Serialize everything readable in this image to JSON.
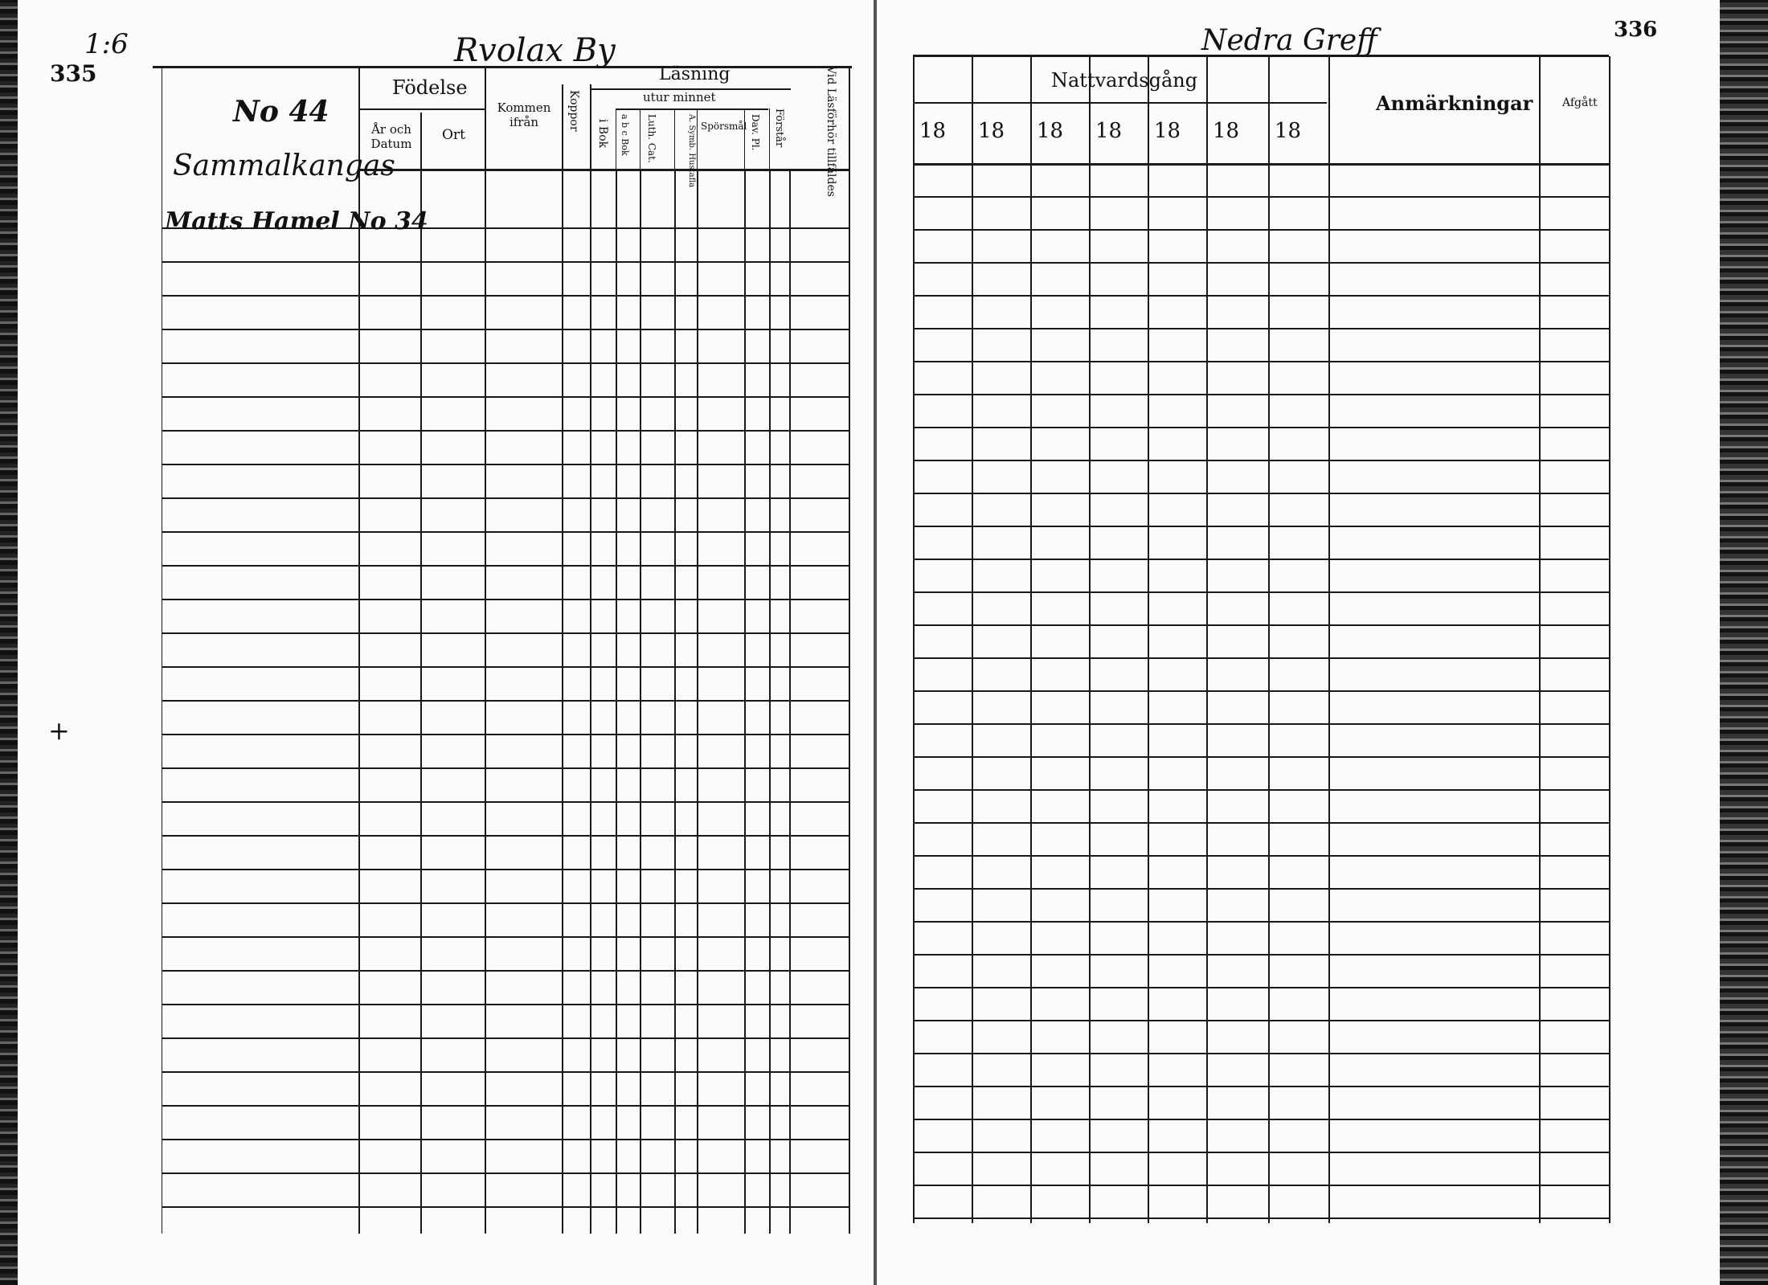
{
  "left_page": {
    "page_number": "335",
    "margin_note": "1:6",
    "village_heading": "Rvolax By",
    "household_number": "No 44",
    "household_name": "Sammalkangas",
    "household_ref": "Matts Hamel No 34",
    "cross_mark": "+",
    "headers": {
      "fodelse": "Födelse",
      "ar_och_datum": "År och Datum",
      "ort": "Ort",
      "kommen_ifran": "Kommen ifrån",
      "koppor": "Koppor",
      "lasning": "Läsning",
      "utur_minnet": "utur minnet",
      "i_bok": "i Bok",
      "abc_bok": "a b c Bok",
      "luth_cat": "Luth. Cat.",
      "a_symb_hustafla": "A. Symb. Hustafla",
      "sporsmal": "Spörsmål",
      "dav_pl": "Dav. Pl.",
      "forstar": "Förstår",
      "vid_lasforhor": "Vid Läsförhör tillfäldes"
    }
  },
  "right_page": {
    "page_number": "336",
    "village_heading": "Nedra Greff",
    "headers": {
      "nattvardsgang": "Nattvardsgång",
      "years": [
        "18",
        "18",
        "18",
        "18",
        "18",
        "18",
        "18"
      ],
      "anmarkningar": "Anmärkningar",
      "afgatt": "Afgått"
    }
  }
}
